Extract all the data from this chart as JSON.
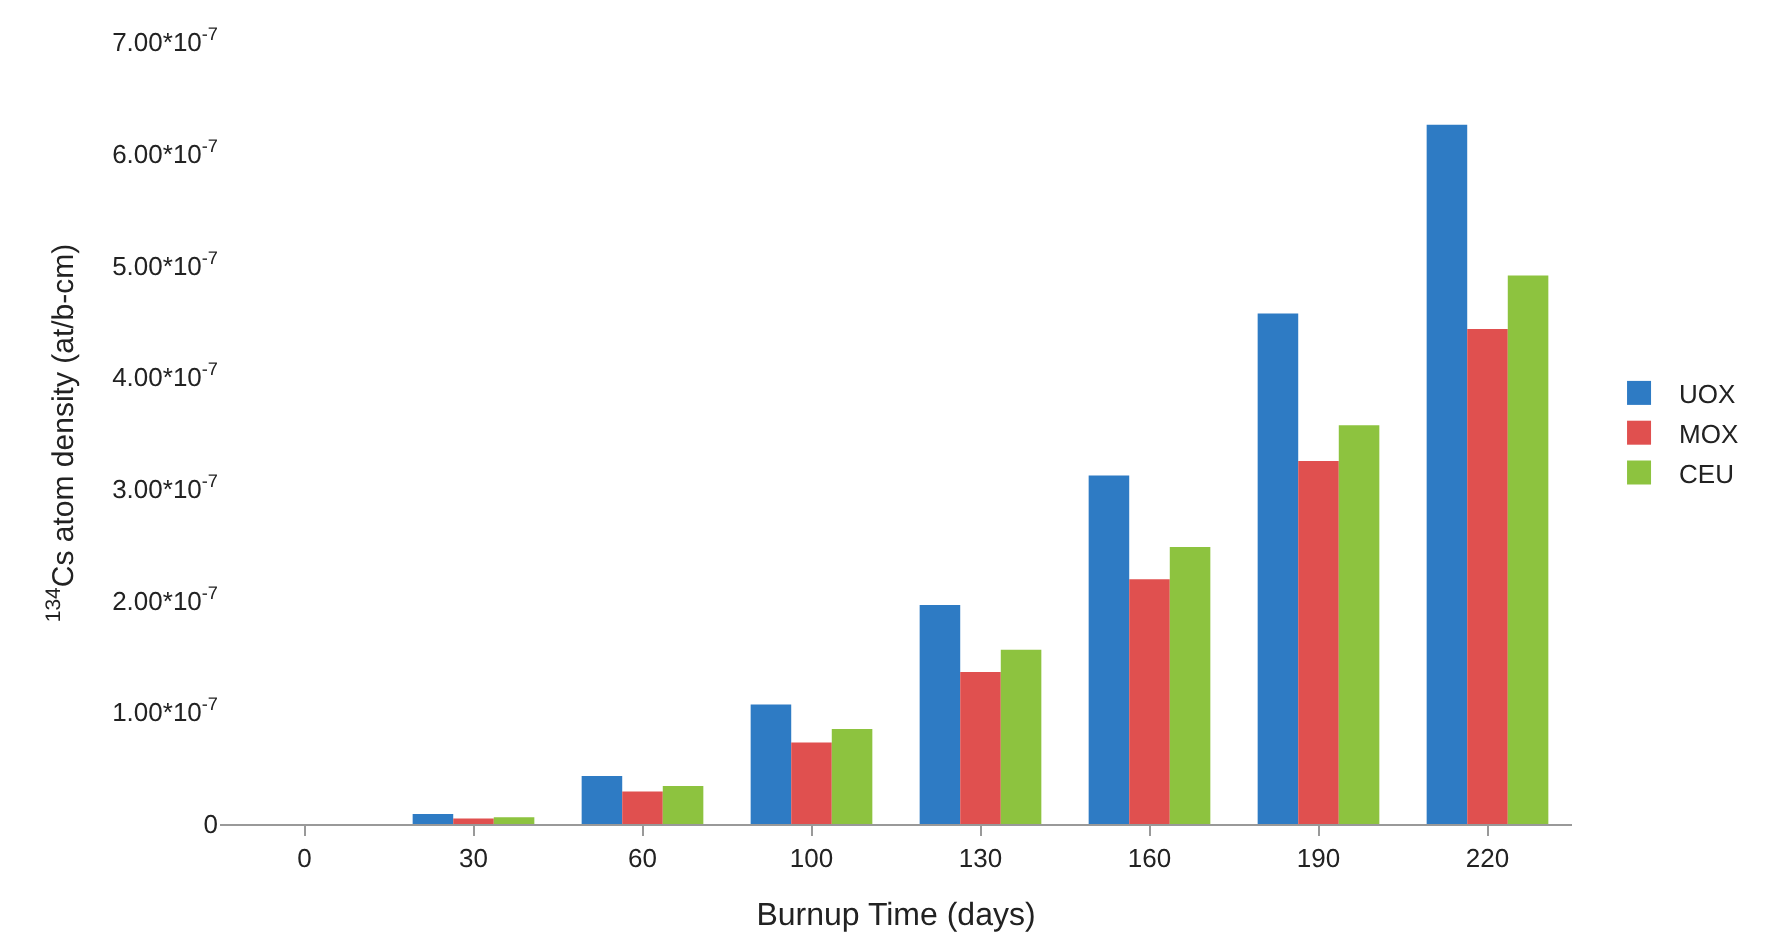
{
  "chart_data": {
    "type": "bar",
    "xlabel": "Burnup Time (days)",
    "ylabel": "$^{134}$Cs atom density (at/b-cm)",
    "categories": [
      "0",
      "30",
      "60",
      "100",
      "130",
      "160",
      "190",
      "220"
    ],
    "series": [
      {
        "name": "UOX",
        "color": "#2e7bc4",
        "values": [
          0,
          9e-09,
          4.3e-08,
          1.07e-07,
          1.96e-07,
          3.12e-07,
          4.57e-07,
          6.26e-07
        ]
      },
      {
        "name": "MOX",
        "color": "#e0504f",
        "values": [
          0,
          5e-09,
          2.9e-08,
          7.3e-08,
          1.36e-07,
          2.19e-07,
          3.25e-07,
          4.43e-07
        ]
      },
      {
        "name": "CEU",
        "color": "#8dc33f",
        "values": [
          0,
          6e-09,
          3.4e-08,
          8.5e-08,
          1.56e-07,
          2.48e-07,
          3.57e-07,
          4.91e-07
        ]
      }
    ],
    "ylim": [
      0,
      7e-07
    ],
    "yticks": [
      0,
      {
        "value": 1e-07,
        "label": "1.00*10$^{-7}$"
      },
      {
        "value": 2e-07,
        "label": "2.00*10$^{-7}$"
      },
      {
        "value": 3e-07,
        "label": "3.00*10$^{-7}$"
      },
      {
        "value": 4e-07,
        "label": "4.00*10$^{-7}$"
      },
      {
        "value": 5e-07,
        "label": "5.00*10$^{-7}$"
      },
      {
        "value": 6e-07,
        "label": "6.00*10$^{-7}$"
      },
      {
        "value": 7e-07,
        "label": "7.00*10$^{-7}$"
      }
    ],
    "legend": "right"
  }
}
